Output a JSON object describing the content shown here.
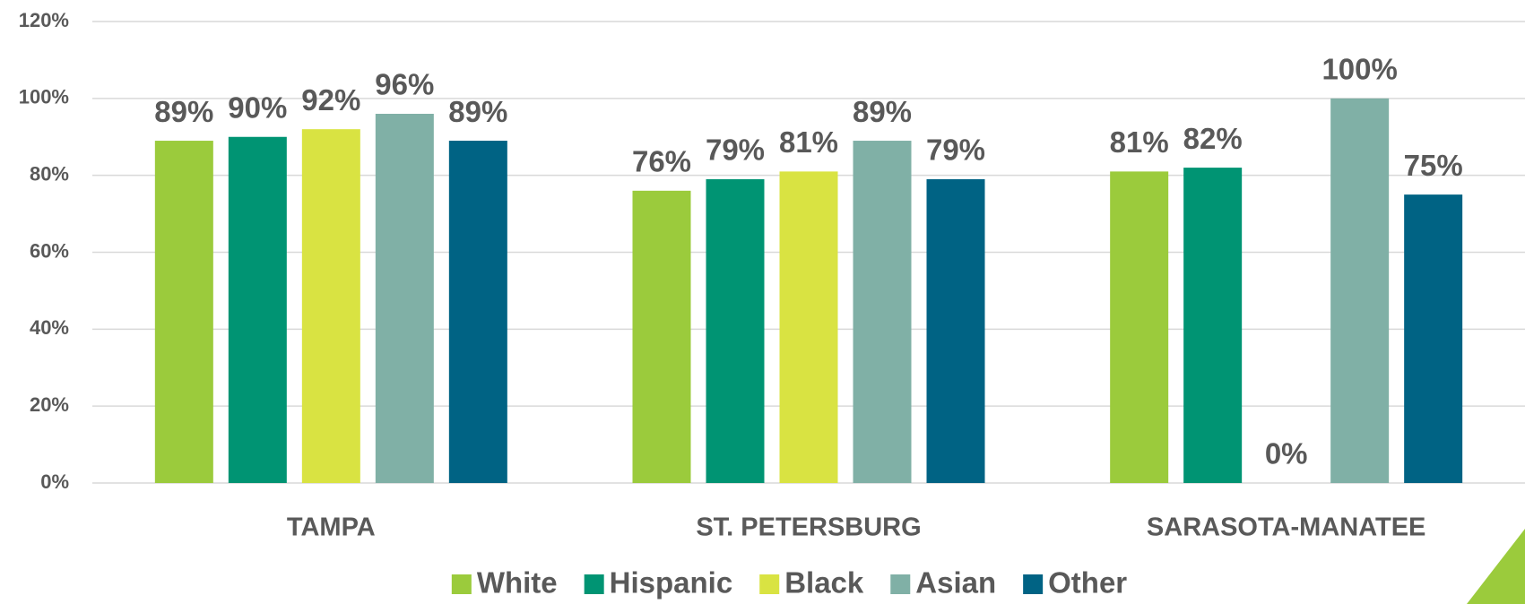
{
  "chart_data": {
    "type": "bar",
    "categories": [
      "TAMPA",
      "ST. PETERSBURG",
      "SARASOTA-MANATEE"
    ],
    "series": [
      {
        "name": "White",
        "color": "#9bcb3c",
        "values": [
          89,
          76,
          81
        ],
        "value_labels": [
          "89%",
          "76%",
          "81%"
        ]
      },
      {
        "name": "Hispanic",
        "color": "#009473",
        "values": [
          90,
          79,
          82
        ],
        "value_labels": [
          "90%",
          "79%",
          "82%"
        ]
      },
      {
        "name": "Black",
        "color": "#d9e342",
        "values": [
          92,
          81,
          0
        ],
        "value_labels": [
          "92%",
          "81%",
          "0%"
        ]
      },
      {
        "name": "Asian",
        "color": "#80b0a6",
        "values": [
          96,
          89,
          100
        ],
        "value_labels": [
          "96%",
          "89%",
          "100%"
        ]
      },
      {
        "name": "Other",
        "color": "#006384",
        "values": [
          89,
          79,
          75
        ],
        "value_labels": [
          "89%",
          "79%",
          "75%"
        ]
      }
    ],
    "ylim": [
      0,
      120
    ],
    "yticks": [
      {
        "value": 0,
        "label": "0%"
      },
      {
        "value": 20,
        "label": "20%"
      },
      {
        "value": 40,
        "label": "40%"
      },
      {
        "value": 60,
        "label": "60%"
      },
      {
        "value": 80,
        "label": "80%"
      },
      {
        "value": 100,
        "label": "100%"
      },
      {
        "value": 120,
        "label": "120%"
      }
    ],
    "grid": true,
    "legend": "bottom"
  }
}
